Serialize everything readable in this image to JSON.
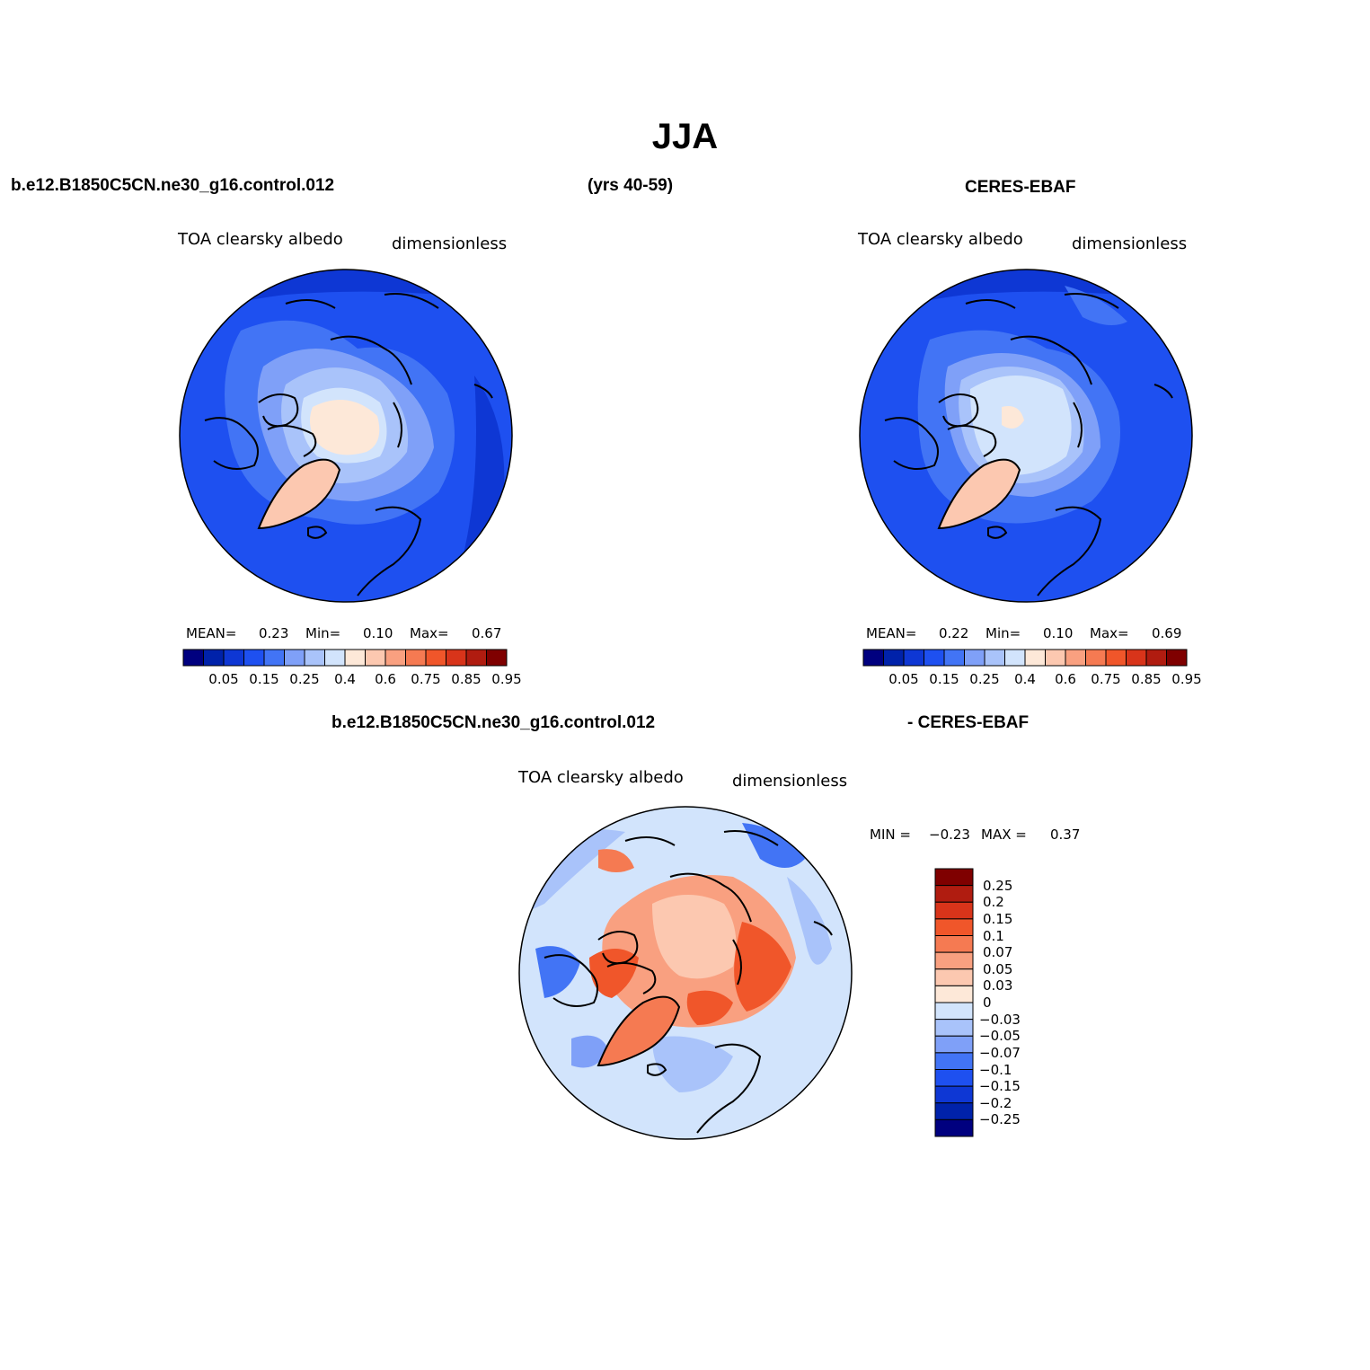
{
  "title": "JJA",
  "header": {
    "left_case": "b.e12.B1850C5CN.ne30_g16.control.012",
    "years": "(yrs 40-59)",
    "right_obs": "CERES-EBAF"
  },
  "panels": [
    {
      "id": "model",
      "variable": "TOA clearsky albedo",
      "units": "dimensionless",
      "mean_label": "MEAN=",
      "mean": "0.23",
      "min_label": "Min=",
      "min": "0.10",
      "max_label": "Max=",
      "max": "0.67"
    },
    {
      "id": "obs",
      "variable": "TOA clearsky albedo",
      "units": "dimensionless",
      "mean_label": "MEAN=",
      "mean": "0.22",
      "min_label": "Min=",
      "min": "0.10",
      "max_label": "Max=",
      "max": "0.69"
    }
  ],
  "diff_header": {
    "left": "b.e12.B1850C5CN.ne30_g16.control.012",
    "right": "- CERES-EBAF"
  },
  "diff_panel": {
    "variable": "TOA clearsky albedo",
    "units": "dimensionless",
    "min_label": "MIN =",
    "min": "−0.23",
    "max_label": "MAX =",
    "max": "0.37"
  },
  "colorbar_main": {
    "labels": [
      "0.05",
      "0.15",
      "0.25",
      "0.4",
      "0.6",
      "0.75",
      "0.85",
      "0.95"
    ],
    "colors": [
      "#00007f",
      "#0022aa",
      "#0e37d4",
      "#1e50f0",
      "#4274f5",
      "#7fa0f8",
      "#a9c3fa",
      "#d2e4fc",
      "#fde8d8",
      "#fcc8b0",
      "#f9a080",
      "#f57a52",
      "#f0562a",
      "#d8341a",
      "#b01c10",
      "#7f0000"
    ]
  },
  "colorbar_diff": {
    "labels": [
      "0.25",
      "0.2",
      "0.15",
      "0.1",
      "0.07",
      "0.05",
      "0.03",
      "0",
      "−0.03",
      "−0.05",
      "−0.07",
      "−0.1",
      "−0.15",
      "−0.2",
      "−0.25"
    ],
    "colors_top_to_bottom": [
      "#7f0000",
      "#b01c10",
      "#d8341a",
      "#f0562a",
      "#f57a52",
      "#f9a080",
      "#fcc8b0",
      "#fde8d8",
      "#d2e4fc",
      "#a9c3fa",
      "#7fa0f8",
      "#4274f5",
      "#1e50f0",
      "#0e37d4",
      "#0022aa",
      "#00007f"
    ]
  }
}
